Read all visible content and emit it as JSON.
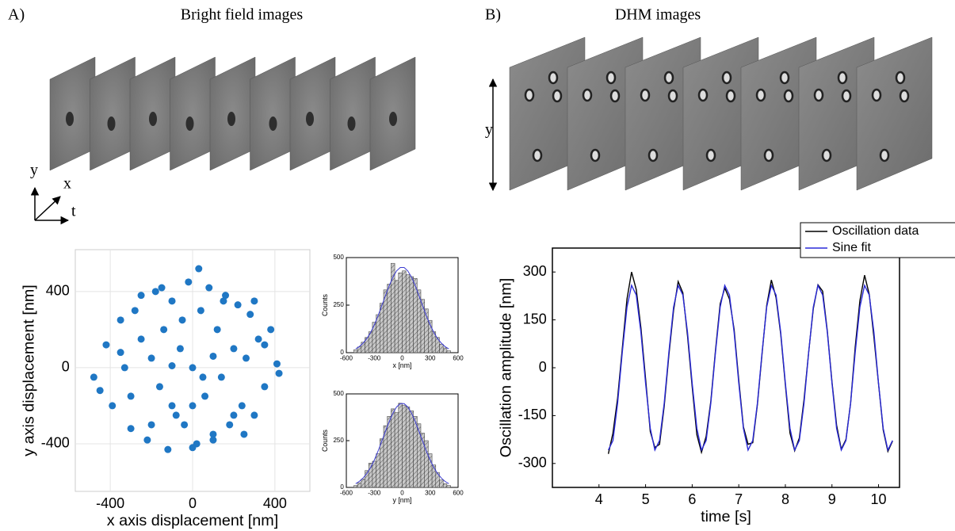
{
  "figure": {
    "label_a": "A)",
    "title_a": "Bright field images",
    "label_b": "B)",
    "title_b": "DHM images",
    "axis_y": "y",
    "axis_x": "x",
    "axis_t": "t",
    "dhm_axis": "y"
  },
  "chart_data": [
    {
      "type": "scatter",
      "x_label": "x axis displacement [nm]",
      "y_label": "y axis displacement [nm]",
      "color": "#1f77c4",
      "grid": true,
      "xlim": [
        -570,
        570
      ],
      "ylim": [
        -650,
        620
      ],
      "xticks": [
        -400,
        0,
        400
      ],
      "yticks": [
        -400,
        0,
        400
      ],
      "x": [
        -480,
        -420,
        -390,
        -350,
        -330,
        -300,
        -280,
        -250,
        -220,
        -200,
        -180,
        -160,
        -140,
        -120,
        -100,
        -80,
        -60,
        -40,
        -20,
        0,
        20,
        40,
        60,
        80,
        100,
        120,
        140,
        160,
        180,
        200,
        220,
        240,
        260,
        280,
        300,
        320,
        350,
        380,
        410,
        -450,
        -300,
        -200,
        -100,
        0,
        100,
        200,
        300,
        420,
        -250,
        -150,
        -50,
        50,
        150,
        250,
        -350,
        350,
        -100,
        100,
        0,
        30
      ],
      "values": [
        -50,
        120,
        -200,
        250,
        0,
        -320,
        300,
        150,
        -380,
        50,
        400,
        -100,
        200,
        -430,
        350,
        -250,
        100,
        -300,
        450,
        0,
        -400,
        300,
        -150,
        420,
        -350,
        200,
        -50,
        380,
        -300,
        100,
        330,
        -200,
        50,
        280,
        -250,
        150,
        -100,
        200,
        20,
        -120,
        -150,
        -300,
        -200,
        -420,
        -380,
        -250,
        350,
        -30,
        380,
        420,
        250,
        -50,
        350,
        -350,
        80,
        120,
        10,
        60,
        -200,
        520
      ]
    },
    {
      "type": "histogram",
      "x_label": "x [nm]",
      "y_label": "Counts",
      "color": "#b0b0b0",
      "xlim": [
        -600,
        600
      ],
      "ylim": [
        0,
        500
      ],
      "xticks": [
        -600,
        -300,
        0,
        300,
        600
      ],
      "yticks": [
        0,
        250,
        500
      ],
      "bins": [
        -520,
        -480,
        -440,
        -400,
        -360,
        -320,
        -280,
        -240,
        -200,
        -160,
        -120,
        -80,
        -40,
        0,
        40,
        80,
        120,
        160,
        200,
        240,
        280,
        320,
        360,
        400,
        440,
        480,
        520
      ],
      "values": [
        15,
        30,
        55,
        80,
        110,
        160,
        200,
        260,
        330,
        360,
        470,
        380,
        420,
        430,
        410,
        400,
        390,
        330,
        280,
        230,
        170,
        110,
        80,
        45,
        25,
        10
      ],
      "fit": {
        "color": "#3b3bd0",
        "x": [
          -500,
          -460,
          -420,
          -380,
          -340,
          -300,
          -260,
          -220,
          -180,
          -140,
          -100,
          -60,
          -20,
          20,
          60,
          100,
          140,
          180,
          220,
          260,
          300,
          340,
          380,
          420,
          460,
          500
        ],
        "values": [
          20,
          32,
          50,
          74,
          106,
          146,
          193,
          246,
          300,
          352,
          397,
          430,
          448,
          448,
          430,
          397,
          352,
          300,
          246,
          193,
          146,
          106,
          74,
          50,
          32,
          20
        ]
      }
    },
    {
      "type": "histogram",
      "x_label": "y [nm]",
      "y_label": "Counts",
      "color": "#b0b0b0",
      "xlim": [
        -600,
        600
      ],
      "ylim": [
        0,
        500
      ],
      "xticks": [
        -600,
        -300,
        0,
        300,
        600
      ],
      "yticks": [
        0,
        250,
        500
      ],
      "bins": [
        -520,
        -480,
        -440,
        -400,
        -360,
        -320,
        -280,
        -240,
        -200,
        -160,
        -120,
        -80,
        -40,
        0,
        40,
        80,
        120,
        160,
        200,
        240,
        280,
        320,
        360,
        400,
        440,
        480,
        520
      ],
      "values": [
        10,
        25,
        45,
        90,
        130,
        140,
        180,
        260,
        330,
        380,
        420,
        400,
        450,
        440,
        430,
        410,
        380,
        340,
        290,
        250,
        180,
        120,
        80,
        40,
        20,
        10
      ],
      "fit": {
        "color": "#3b3bd0",
        "x": [
          -500,
          -460,
          -420,
          -380,
          -340,
          -300,
          -260,
          -220,
          -180,
          -140,
          -100,
          -60,
          -20,
          20,
          60,
          100,
          140,
          180,
          220,
          260,
          300,
          340,
          380,
          420,
          460,
          500
        ],
        "values": [
          20,
          32,
          50,
          74,
          106,
          146,
          193,
          246,
          300,
          352,
          397,
          430,
          448,
          448,
          430,
          397,
          352,
          300,
          246,
          193,
          146,
          106,
          74,
          50,
          32,
          20
        ]
      }
    },
    {
      "type": "line",
      "x_label": "time [s]",
      "y_label": "Oscillation amplitude [nm]",
      "legend": "upper-right",
      "xlim": [
        3,
        10.45
      ],
      "ylim": [
        -375,
        375
      ],
      "xticks": [
        4,
        5,
        6,
        7,
        8,
        9,
        10
      ],
      "yticks": [
        -300,
        -150,
        0,
        150,
        300
      ],
      "x": [
        4.2,
        4.3,
        4.4,
        4.5,
        4.6,
        4.7,
        4.8,
        4.9,
        5.0,
        5.1,
        5.2,
        5.3,
        5.4,
        5.5,
        5.6,
        5.7,
        5.8,
        5.9,
        6.0,
        6.1,
        6.2,
        6.3,
        6.4,
        6.5,
        6.6,
        6.7,
        6.8,
        6.9,
        7.0,
        7.1,
        7.2,
        7.3,
        7.4,
        7.5,
        7.6,
        7.7,
        7.8,
        7.9,
        8.0,
        8.1,
        8.2,
        8.3,
        8.4,
        8.5,
        8.6,
        8.7,
        8.8,
        8.9,
        9.0,
        9.1,
        9.2,
        9.3,
        9.4,
        9.5,
        9.6,
        9.7,
        9.8,
        9.9,
        10.0,
        10.1,
        10.2,
        10.3
      ],
      "series": [
        {
          "name": "Oscillation data",
          "color": "#000000",
          "values": [
            -270,
            -205,
            -95,
            60,
            215,
            300,
            245,
            125,
            -35,
            -200,
            -250,
            -240,
            -120,
            40,
            180,
            270,
            235,
            100,
            -60,
            -210,
            -265,
            -215,
            -105,
            55,
            200,
            250,
            215,
            120,
            -40,
            -185,
            -240,
            -235,
            -115,
            45,
            195,
            275,
            220,
            105,
            -55,
            -205,
            -260,
            -220,
            -100,
            50,
            185,
            260,
            240,
            115,
            -45,
            -180,
            -255,
            -225,
            -110,
            65,
            210,
            290,
            230,
            95,
            -50,
            -195,
            -262,
            -230
          ]
        },
        {
          "name": "Sine fit",
          "color": "#2a2ad8",
          "values": [
            -258,
            -228,
            -111,
            49,
            190,
            258,
            228,
            111,
            -49,
            -190,
            -258,
            -228,
            -111,
            49,
            190,
            258,
            228,
            111,
            -49,
            -190,
            -258,
            -228,
            -111,
            49,
            190,
            258,
            228,
            111,
            -49,
            -190,
            -258,
            -228,
            -111,
            49,
            190,
            258,
            228,
            111,
            -49,
            -190,
            -258,
            -228,
            -111,
            49,
            190,
            258,
            228,
            111,
            -49,
            -190,
            -258,
            -228,
            -111,
            49,
            190,
            258,
            228,
            111,
            -49,
            -190,
            -258,
            -228
          ]
        }
      ]
    }
  ]
}
